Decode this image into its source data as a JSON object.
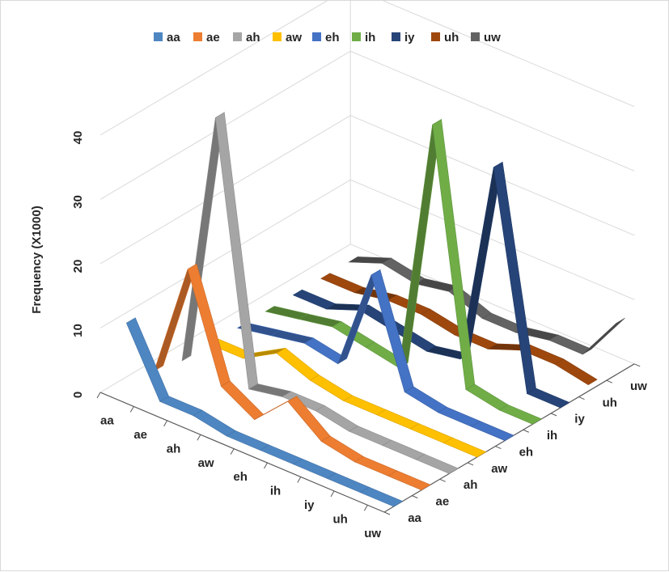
{
  "chart_data": {
    "type": "line",
    "subtype": "3d-ribbon",
    "title": "",
    "ylabel": "Frequency (X1000)",
    "ylim": [
      0,
      40
    ],
    "yticks": [
      0,
      10,
      20,
      30,
      40
    ],
    "categories": [
      "aa",
      "ae",
      "ah",
      "aw",
      "eh",
      "ih",
      "iy",
      "uh",
      "uw"
    ],
    "depth_categories": [
      "aa",
      "ae",
      "ah",
      "aw",
      "eh",
      "ih",
      "iy",
      "uh",
      "uw"
    ],
    "legend_position": "top",
    "grid": true,
    "series": [
      {
        "name": "aa",
        "color": "#4e86c2",
        "values": [
          11,
          1,
          1,
          0,
          0,
          0,
          0,
          0,
          0
        ]
      },
      {
        "name": "ae",
        "color": "#ed7d31",
        "values": [
          1,
          19,
          3,
          0,
          5,
          1,
          0,
          0,
          0
        ]
      },
      {
        "name": "ah",
        "color": "#a5a5a5",
        "values": [
          0,
          40,
          0,
          1,
          1,
          0,
          0,
          0,
          0
        ]
      },
      {
        "name": "aw",
        "color": "#ffc000",
        "values": [
          0,
          0,
          3,
          1,
          0,
          0,
          0,
          0,
          0
        ]
      },
      {
        "name": "eh",
        "color": "#4472c4",
        "values": [
          0,
          1,
          2,
          1,
          17,
          1,
          0,
          0,
          0
        ]
      },
      {
        "name": "ih",
        "color": "#70ad47",
        "values": [
          0,
          1,
          2,
          1,
          0,
          40,
          1,
          0,
          0
        ]
      },
      {
        "name": "iy",
        "color": "#264478",
        "values": [
          0,
          0,
          2,
          1,
          0,
          1,
          33,
          0,
          0
        ]
      },
      {
        "name": "uh",
        "color": "#9e480e",
        "values": [
          0,
          0,
          1,
          1,
          0,
          0,
          2,
          2,
          1
        ]
      },
      {
        "name": "uw",
        "color": "#636363",
        "values": [
          0,
          2,
          1,
          2,
          0,
          0,
          1,
          1,
          8
        ]
      }
    ]
  }
}
